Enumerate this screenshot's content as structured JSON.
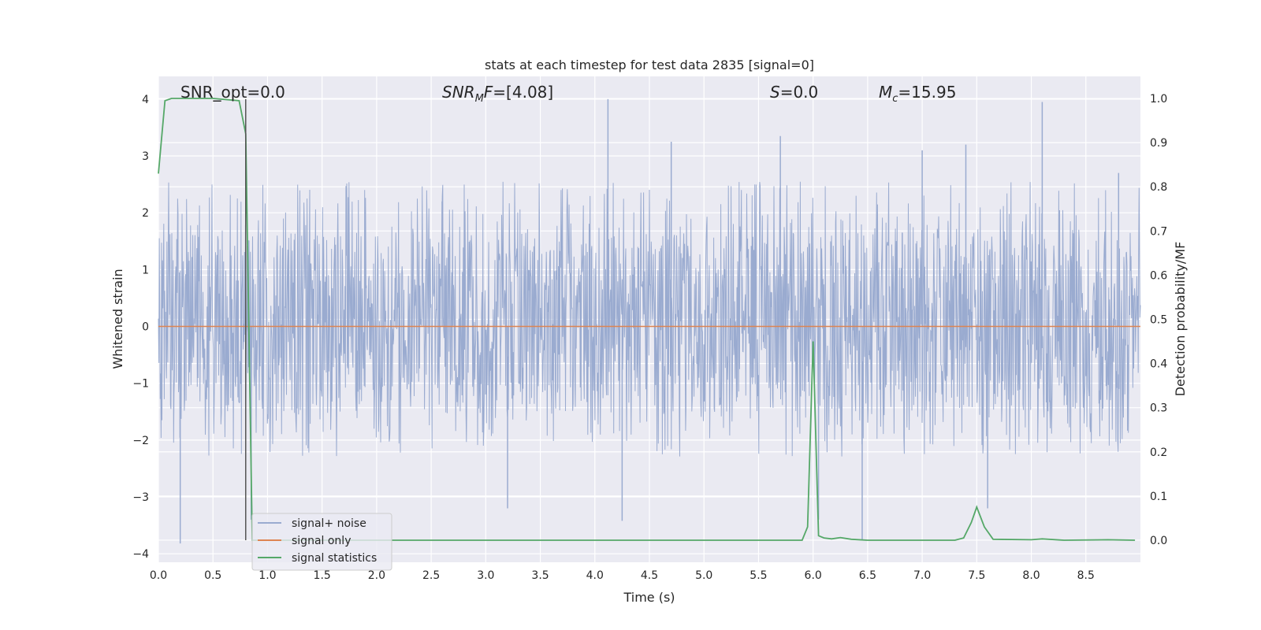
{
  "chart_data": {
    "type": "line",
    "title": "stats at each timestep for test data 2835 [signal=0]",
    "xlabel": "Time (s)",
    "ylabel_left": "Whitened strain",
    "ylabel_right": "Detection probability/MF",
    "xlim": [
      0.0,
      9.0
    ],
    "ylim_left": [
      -4.15,
      4.4
    ],
    "ylim_right": [
      -0.05,
      1.05
    ],
    "x_ticks": [
      "0.0",
      "0.5",
      "1.0",
      "1.5",
      "2.0",
      "2.5",
      "3.0",
      "3.5",
      "4.0",
      "4.5",
      "5.0",
      "5.5",
      "6.0",
      "6.5",
      "7.0",
      "7.5",
      "8.0",
      "8.5"
    ],
    "y_left_ticks": [
      "4",
      "3",
      "2",
      "1",
      "0",
      "−1",
      "−2",
      "−3",
      "−4"
    ],
    "y_right_ticks": [
      "1.0",
      "0.9",
      "0.8",
      "0.7",
      "0.6",
      "0.5",
      "0.4",
      "0.3",
      "0.2",
      "0.1",
      "0.0"
    ],
    "grid": true,
    "legend_position": "lower-left",
    "colors": {
      "background": "#eaeaf2",
      "grid": "#ffffff",
      "signal_noise": "#9aabd0",
      "signal_only": "#dd8452",
      "signal_statistics": "#55a868",
      "marker_line": "#555555"
    },
    "annotations": {
      "snr_opt": "SNR_opt=0.0",
      "snr_mf_prefix": "SNR",
      "snr_mf_sub": "M",
      "snr_mf_mid": "F",
      "snr_mf_value": "=[4.08]",
      "s_italic": "S",
      "s_value": "=0.0",
      "mc_italic": "M",
      "mc_sub": "c",
      "mc_value": "=15.95"
    },
    "marker_time": 0.8,
    "series": [
      {
        "name": "signal+ noise",
        "axis": "left",
        "style": "noise",
        "envelope_upper": 1.65,
        "envelope_lower": -1.5,
        "peak_times": [
          0.2,
          0.8,
          0.85,
          2.6,
          3.2,
          4.12,
          4.25,
          4.7,
          5.7,
          6.05,
          6.45,
          7.0,
          7.4,
          7.6,
          8.1,
          8.8
        ],
        "peak_values": [
          -3.82,
          2.4,
          -3.4,
          2.2,
          -3.2,
          4.0,
          -3.42,
          3.25,
          3.35,
          -3.4,
          -3.75,
          3.1,
          3.2,
          -3.2,
          3.95,
          2.7
        ]
      },
      {
        "name": "signal only",
        "axis": "left",
        "x": [
          0.0,
          9.0
        ],
        "values": [
          0.0,
          0.0
        ]
      },
      {
        "name": "signal statistics",
        "axis": "right",
        "x": [
          0.0,
          0.06,
          0.12,
          0.5,
          0.74,
          0.8,
          0.86,
          0.95,
          1.2,
          2.0,
          3.0,
          4.0,
          5.0,
          5.9,
          5.95,
          6.0,
          6.05,
          6.1,
          6.17,
          6.25,
          6.35,
          6.5,
          7.0,
          7.3,
          7.38,
          7.45,
          7.5,
          7.57,
          7.65,
          8.0,
          8.1,
          8.3,
          8.7,
          8.95
        ],
        "values": [
          0.83,
          0.995,
          1.0,
          1.0,
          0.995,
          0.92,
          0.0,
          0.0,
          0.0,
          0.0,
          0.0,
          0.0,
          0.0,
          0.0,
          0.03,
          0.45,
          0.01,
          0.005,
          0.003,
          0.006,
          0.002,
          0.0,
          0.0,
          0.0,
          0.005,
          0.04,
          0.075,
          0.03,
          0.002,
          0.001,
          0.003,
          0.0,
          0.001,
          0.0
        ]
      }
    ]
  }
}
